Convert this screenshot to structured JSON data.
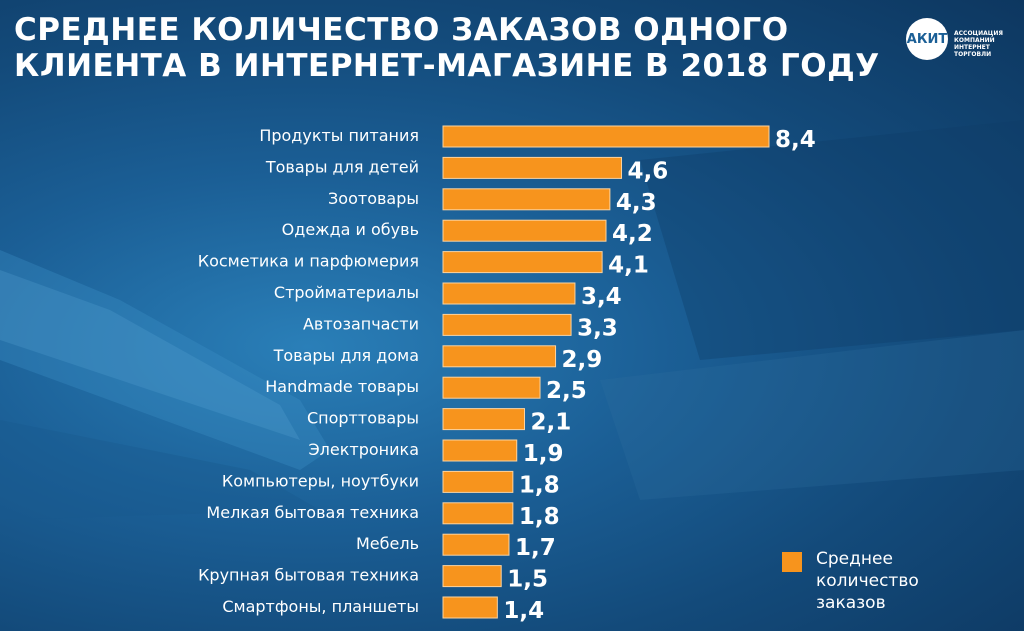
{
  "title": {
    "line1": "СРЕДНЕЕ КОЛИЧЕСТВО ЗАКАЗОВ ОДНОГО",
    "line2": "КЛИЕНТА В ИНТЕРНЕТ-МАГАЗИНЕ В 2018 ГОДУ"
  },
  "logo": {
    "abbr": "АКИТ",
    "lines": [
      "АССОЦИАЦИЯ",
      "КОМПАНИЙ",
      "ИНТЕРНЕТ",
      "ТОРГОВЛИ"
    ]
  },
  "legend": {
    "label": "Среднее количество заказов"
  },
  "colors": {
    "bar": "#f7941d",
    "bar_stroke": "#fbd3a0"
  },
  "chart_data": {
    "type": "bar",
    "orientation": "horizontal",
    "title": "СРЕДНЕЕ КОЛИЧЕСТВО ЗАКАЗОВ ОДНОГО КЛИЕНТА В ИНТЕРНЕТ-МАГАЗИНЕ В 2018 ГОДУ",
    "xlim": [
      0,
      8.4
    ],
    "grid": false,
    "legend_position": "bottom-right",
    "series": [
      {
        "name": "Среднее количество заказов"
      }
    ],
    "categories": [
      "Продукты питания",
      "Товары для детей",
      "Зоотовары",
      "Одежда и обувь",
      "Косметика и парфюмерия",
      "Стройматериалы",
      "Автозапчасти",
      "Товары для дома",
      "Handmade товары",
      "Спорттовары",
      "Электроника",
      "Компьютеры, ноутбуки",
      "Мелкая бытовая техника",
      "Мебель",
      "Крупная бытовая техника",
      "Смартфоны, планшеты"
    ],
    "values": [
      8.4,
      4.6,
      4.3,
      4.2,
      4.1,
      3.4,
      3.3,
      2.9,
      2.5,
      2.1,
      1.9,
      1.8,
      1.8,
      1.7,
      1.5,
      1.4
    ],
    "value_labels": [
      "8,4",
      "4,6",
      "4,3",
      "4,2",
      "4,1",
      "3,4",
      "3,3",
      "2,9",
      "2,5",
      "2,1",
      "1,9",
      "1,8",
      "1,8",
      "1,7",
      "1,5",
      "1,4"
    ]
  }
}
